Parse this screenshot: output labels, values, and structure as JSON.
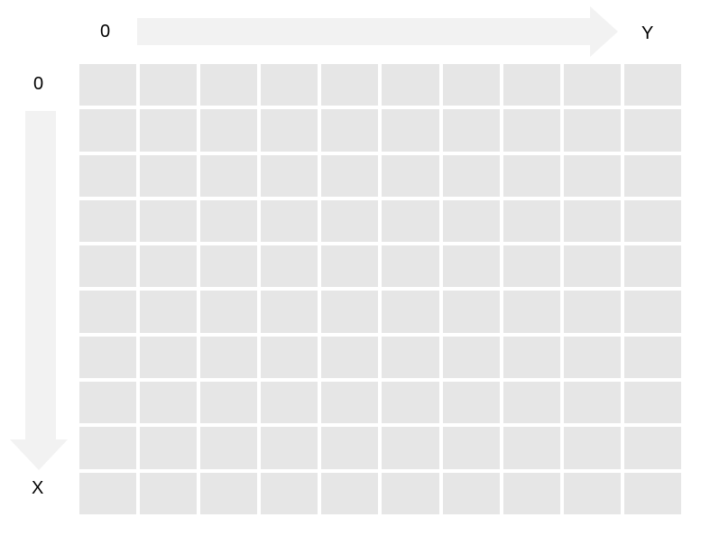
{
  "diagram": {
    "description": "screen-coordinate convention grid: X axis points down, Y axis points right",
    "horizontal_axis": {
      "origin_label": "0",
      "axis_label": "Y",
      "direction": "right"
    },
    "vertical_axis": {
      "origin_label": "0",
      "axis_label": "X",
      "direction": "down"
    },
    "grid": {
      "rows": 10,
      "columns": 10
    },
    "colors": {
      "background": "#ffffff",
      "cell": "#e6e6e6",
      "arrow": "#f2f2f2",
      "text": "#000000"
    }
  }
}
